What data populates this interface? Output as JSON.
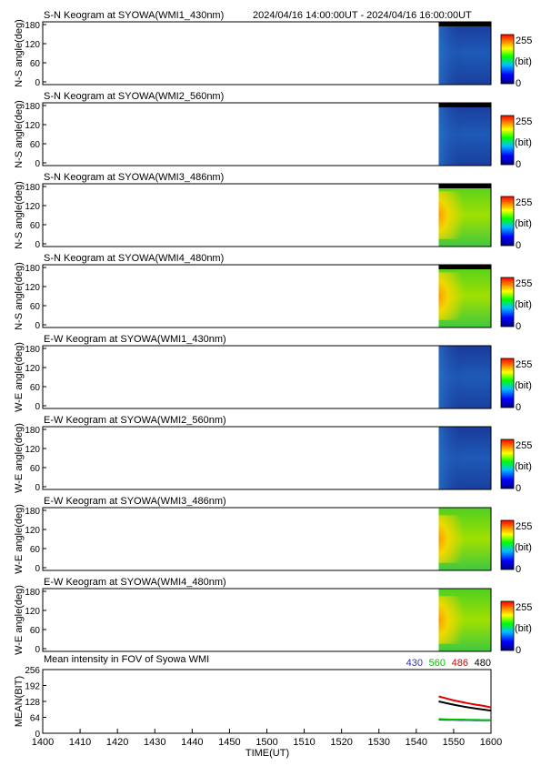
{
  "header": {
    "time_range": "2024/04/16 14:00:00UT - 2024/04/16 16:00:00UT"
  },
  "colorbar": {
    "max_label": "255",
    "unit_label": "(bit)",
    "min_label": "0"
  },
  "panels": [
    {
      "title": "S-N Keogram at SYOWA(WMI1_430nm)",
      "ylabel": "N-S angle(deg)",
      "yticks": [
        "180",
        "120",
        "60",
        "0"
      ],
      "data_start_time": "1546",
      "palette": "blue"
    },
    {
      "title": "S-N Keogram at SYOWA(WMI2_560nm)",
      "ylabel": "N-S angle(deg)",
      "yticks": [
        "180",
        "120",
        "60",
        "0"
      ],
      "data_start_time": "1546",
      "palette": "blue"
    },
    {
      "title": "S-N Keogram at SYOWA(WMI3_486nm)",
      "ylabel": "N-S angle(deg)",
      "yticks": [
        "180",
        "120",
        "60",
        "0"
      ],
      "data_start_time": "1546",
      "palette": "green"
    },
    {
      "title": "S-N Keogram at SYOWA(WMI4_480nm)",
      "ylabel": "N-S angle(deg)",
      "yticks": [
        "180",
        "120",
        "60",
        "0"
      ],
      "data_start_time": "1546",
      "palette": "green"
    },
    {
      "title": "E-W Keogram at SYOWA(WMI1_430nm)",
      "ylabel": "W-E angle(deg)",
      "yticks": [
        "180",
        "120",
        "60",
        "0"
      ],
      "data_start_time": "1546",
      "palette": "blue"
    },
    {
      "title": "E-W Keogram at SYOWA(WMI2_560nm)",
      "ylabel": "W-E angle(deg)",
      "yticks": [
        "180",
        "120",
        "60",
        "0"
      ],
      "data_start_time": "1546",
      "palette": "blue"
    },
    {
      "title": "E-W Keogram at SYOWA(WMI3_486nm)",
      "ylabel": "W-E angle(deg)",
      "yticks": [
        "180",
        "120",
        "60",
        "0"
      ],
      "data_start_time": "1546",
      "palette": "green"
    },
    {
      "title": "E-W Keogram at SYOWA(WMI4_480nm)",
      "ylabel": "W-E angle(deg)",
      "yticks": [
        "180",
        "120",
        "60",
        "0"
      ],
      "data_start_time": "1546",
      "palette": "green"
    }
  ],
  "chart_data": {
    "type": "line",
    "title": "Mean intensity in FOV of Syowa WMI",
    "xlabel": "TIME(UT)",
    "ylabel": "MEAN(BIT)",
    "x_ticks": [
      "1400",
      "1410",
      "1420",
      "1430",
      "1440",
      "1450",
      "1500",
      "1510",
      "1520",
      "1530",
      "1540",
      "1550",
      "1600"
    ],
    "y_ticks": [
      "256",
      "192",
      "128",
      "64",
      "0"
    ],
    "xlim": [
      0,
      120
    ],
    "ylim": [
      0,
      256
    ],
    "x_unit_note": "minutes",
    "series": [
      {
        "name": "430",
        "color": "#3030c0",
        "x": [
          106,
          108,
          110,
          112,
          114,
          116,
          118,
          120
        ],
        "values": [
          55,
          54,
          54,
          53,
          53,
          52,
          52,
          52
        ]
      },
      {
        "name": "560",
        "color": "#00c000",
        "x": [
          106,
          108,
          110,
          112,
          114,
          116,
          118,
          120
        ],
        "values": [
          57,
          56,
          55,
          55,
          54,
          54,
          53,
          53
        ]
      },
      {
        "name": "486",
        "color": "#e00000",
        "x": [
          106,
          108,
          110,
          112,
          114,
          116,
          118,
          120
        ],
        "values": [
          148,
          140,
          132,
          126,
          120,
          115,
          110,
          104
        ]
      },
      {
        "name": "480",
        "color": "#000000",
        "x": [
          106,
          108,
          110,
          112,
          114,
          116,
          118,
          120
        ],
        "values": [
          128,
          121,
          115,
          109,
          104,
          99,
          95,
          91
        ]
      }
    ]
  }
}
